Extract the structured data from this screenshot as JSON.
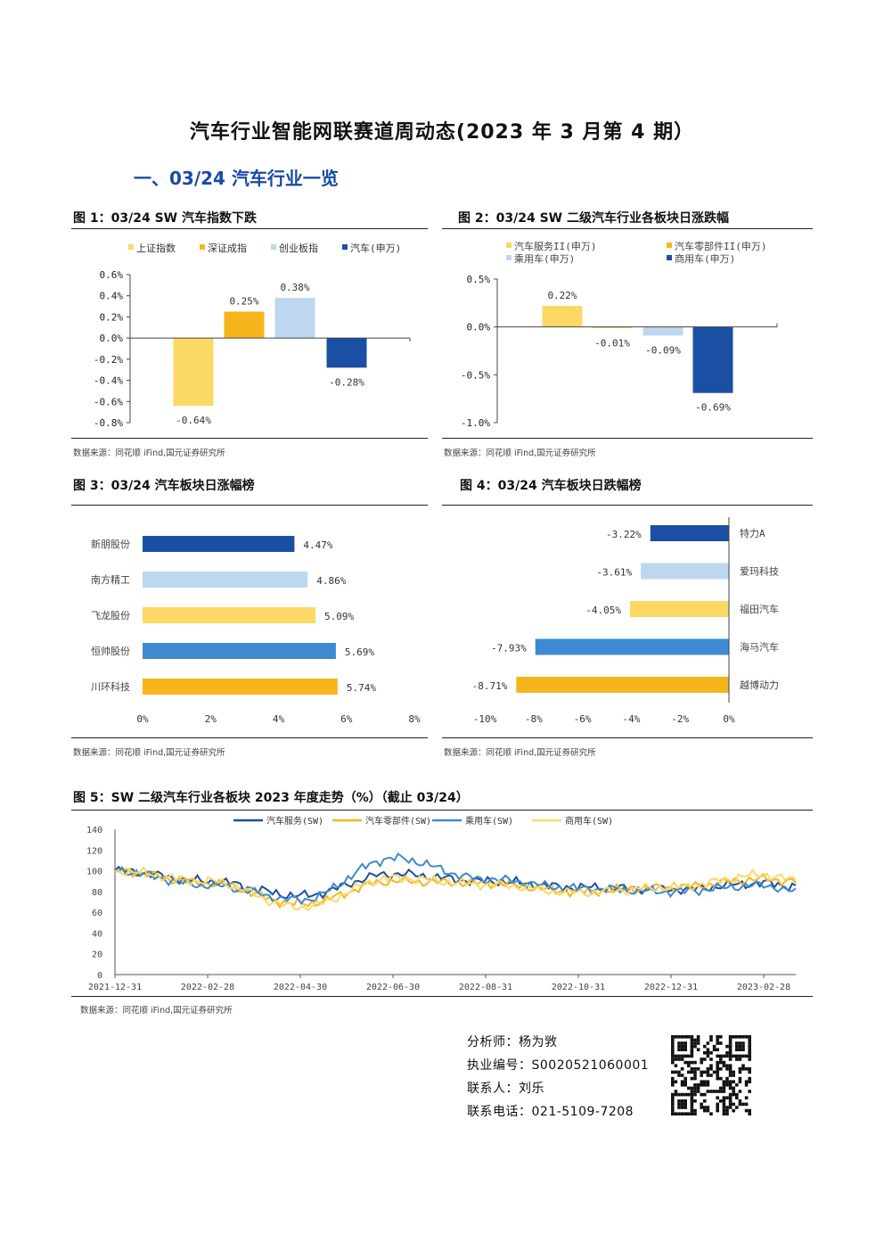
{
  "title": "汽车行业智能网联赛道周动态(2023 年 3 月第 4 期）",
  "section": "一、03/24 汽车行业一览",
  "source_text": "数据来源：同花顺 iFind,国元证券研究所",
  "colors": {
    "light_yellow": "#fcd865",
    "yellow": "#f6b51c",
    "light_blue": "#bcd7ee",
    "dark_blue": "#1b4fa3",
    "mid_blue": "#3d8ad0"
  },
  "fig1": {
    "title": "图 1：03/24 SW 汽车指数下跌",
    "chart_data": {
      "type": "bar",
      "categories": [
        "上证指数",
        "深证成指",
        "创业板指",
        "汽车(申万)"
      ],
      "values": [
        -0.64,
        0.25,
        0.38,
        -0.28
      ],
      "value_labels": [
        "-0.64%",
        "0.25%",
        "0.38%",
        "-0.28%"
      ],
      "ylim": [
        -0.8,
        0.6
      ],
      "yticks": [
        "0.6%",
        "0.4%",
        "0.2%",
        "0.0%",
        "-0.2%",
        "-0.4%",
        "-0.6%",
        "-0.8%"
      ]
    }
  },
  "fig2": {
    "title": "图 2：03/24 SW 二级汽车行业各板块日涨跌幅",
    "chart_data": {
      "type": "bar",
      "categories": [
        "汽车服务II(申万)",
        "汽车零部件II(申万)",
        "乘用车(申万)",
        "商用车(申万)"
      ],
      "values": [
        0.22,
        -0.01,
        -0.09,
        -0.69
      ],
      "value_labels": [
        "0.22%",
        "-0.01%",
        "-0.09%",
        "-0.69%"
      ],
      "ylim": [
        -1.0,
        0.5
      ],
      "yticks": [
        "0.5%",
        "0.0%",
        "-0.5%",
        "-1.0%"
      ]
    }
  },
  "fig3": {
    "title": "图 3：03/24 汽车板块日涨幅榜",
    "chart_data": {
      "type": "bar",
      "categories": [
        "新朋股份",
        "南方精工",
        "飞龙股份",
        "恒帅股份",
        "川环科技"
      ],
      "values": [
        4.47,
        4.86,
        5.09,
        5.69,
        5.74
      ],
      "value_labels": [
        "4.47%",
        "4.86%",
        "5.09%",
        "5.69%",
        "5.74%"
      ],
      "xlim": [
        0,
        8
      ],
      "xticks": [
        "0%",
        "2%",
        "4%",
        "6%",
        "8%"
      ]
    }
  },
  "fig4": {
    "title": "图 4：03/24 汽车板块日跌幅榜",
    "chart_data": {
      "type": "bar",
      "categories": [
        "特力A",
        "爱玛科技",
        "福田汽车",
        "海马汽车",
        "越博动力"
      ],
      "values": [
        -3.22,
        -3.61,
        -4.05,
        -7.93,
        -8.71
      ],
      "value_labels": [
        "-3.22%",
        "-3.61%",
        "-4.05%",
        "-7.93%",
        "-8.71%"
      ],
      "xlim": [
        -10,
        0
      ],
      "xticks": [
        "-10%",
        "-8%",
        "-6%",
        "-4%",
        "-2%",
        "0%"
      ]
    }
  },
  "fig5": {
    "title": "图 5：SW 二级汽车行业各板块 2023 年度走势（%）（截止 03/24）",
    "chart_data": {
      "type": "line",
      "x": [
        "2021-12-31",
        "2022-02-28",
        "2022-04-30",
        "2022-06-30",
        "2022-08-31",
        "2022-10-31",
        "2022-12-31",
        "2023-02-28",
        "2023-03-24"
      ],
      "ylim": [
        0,
        140
      ],
      "yticks": [
        "140",
        "120",
        "100",
        "80",
        "60",
        "40",
        "20",
        "0"
      ],
      "xticks": [
        "2021-12-31",
        "2022-02-28",
        "2022-04-30",
        "2022-06-30",
        "2022-08-31",
        "2022-10-31",
        "2022-12-31",
        "2023-02-28"
      ],
      "series": [
        {
          "name": "汽车服务(SW)",
          "values": [
            100,
            90,
            76,
            97,
            90,
            84,
            82,
            88,
            85
          ]
        },
        {
          "name": "汽车零部件(SW)",
          "values": [
            100,
            88,
            68,
            90,
            88,
            80,
            84,
            92,
            90
          ]
        },
        {
          "name": "乘用车(SW)",
          "values": [
            100,
            86,
            72,
            112,
            92,
            83,
            80,
            86,
            80
          ]
        },
        {
          "name": "商用车(SW)",
          "values": [
            100,
            90,
            65,
            93,
            87,
            79,
            84,
            96,
            91
          ]
        }
      ]
    }
  },
  "contact": {
    "analyst": "分析师：杨为敩",
    "license": "执业编号：S0020521060001",
    "contact_person": "联系人：刘乐",
    "phone": "联系电话：021-5109-7208"
  }
}
